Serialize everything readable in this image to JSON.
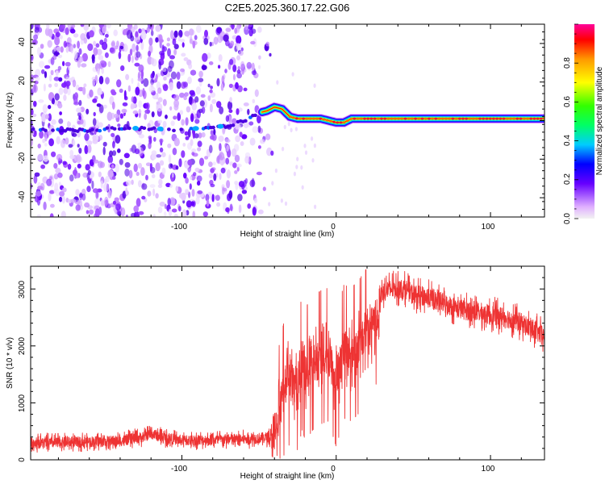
{
  "title": "C2E5.2025.360.17.22.G06",
  "chart_data": [
    {
      "type": "heatmap",
      "title": "C2E5.2025.360.17.22.G06",
      "xlabel": "Height of straight line (km)",
      "ylabel": "Frequency (Hz)",
      "xlim": [
        -198,
        135
      ],
      "ylim": [
        -50,
        50
      ],
      "xticks": [
        -100,
        0,
        100
      ],
      "yticks": [
        -40,
        -20,
        0,
        20,
        40
      ],
      "noise_region_x": [
        -198,
        -45
      ],
      "colorbar": {
        "label": "Normalized spectral amplitude",
        "range": [
          0,
          1
        ],
        "ticks": [
          "0.0",
          "0.2",
          "0.4",
          "0.6",
          "0.8"
        ],
        "colors": [
          "#f2f2f2",
          "#e0b0ff",
          "#6600ff",
          "#0000ff",
          "#00ccff",
          "#00ff66",
          "#33ff00",
          "#ffff00",
          "#ff9900",
          "#ff0000",
          "#ff0099"
        ]
      },
      "ridge": {
        "x": [
          -198,
          -180,
          -160,
          -140,
          -120,
          -100,
          -90,
          -80,
          -70,
          -60,
          -50,
          -45,
          -40,
          -35,
          -30,
          -25,
          -20,
          -15,
          -10,
          -5,
          0,
          5,
          10,
          20,
          40,
          60,
          80,
          100,
          120,
          135
        ],
        "y": [
          -5,
          -5,
          -5,
          -4,
          -4,
          -5,
          -4,
          -3,
          -3,
          0,
          4,
          5,
          7,
          6,
          2,
          1,
          1,
          1,
          1,
          0,
          -1,
          -1,
          1,
          1,
          1,
          1,
          1,
          1,
          1,
          1
        ]
      }
    },
    {
      "type": "line",
      "xlabel": "Height of straight line (km)",
      "ylabel": "SNR (10 * v/v)",
      "xlim": [
        -198,
        135
      ],
      "ylim": [
        0,
        3400
      ],
      "xticks": [
        -100,
        0,
        100
      ],
      "yticks": [
        0,
        1000,
        2000,
        3000
      ],
      "color": "#ee3333",
      "series": [
        {
          "name": "SNR",
          "x": [
            -198,
            -180,
            -160,
            -140,
            -125,
            -120,
            -110,
            -100,
            -80,
            -60,
            -50,
            -42,
            -38,
            -35,
            -32,
            -28,
            -25,
            -22,
            -20,
            -15,
            -10,
            -5,
            0,
            5,
            10,
            15,
            20,
            25,
            28,
            30,
            35,
            40,
            45,
            50,
            60,
            70,
            80,
            90,
            100,
            110,
            120,
            130,
            135
          ],
          "values": [
            300,
            300,
            320,
            330,
            400,
            460,
            380,
            340,
            350,
            360,
            380,
            400,
            700,
            1100,
            1500,
            1300,
            1350,
            1700,
            1500,
            1700,
            1800,
            1850,
            1400,
            1900,
            1850,
            2000,
            2200,
            2400,
            2750,
            2950,
            3000,
            3000,
            3000,
            2900,
            2850,
            2750,
            2650,
            2600,
            2550,
            2500,
            2400,
            2250,
            2150
          ]
        }
      ]
    }
  ]
}
